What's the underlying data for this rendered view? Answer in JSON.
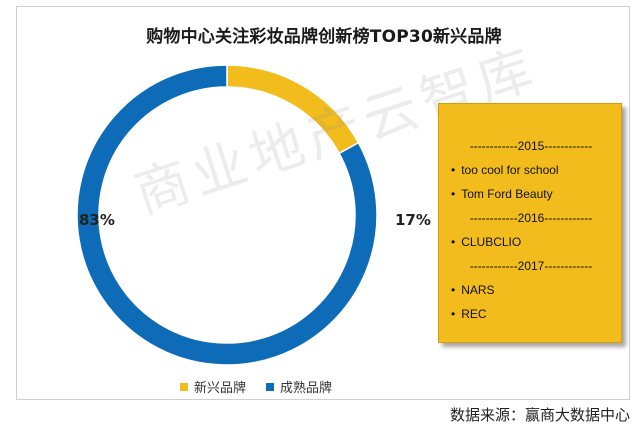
{
  "chart_data": {
    "type": "pie",
    "title": "购物中心关注彩妆品牌创新榜TOP30新兴品牌",
    "categories": [
      "新兴品牌",
      "成熟品牌"
    ],
    "values": [
      17,
      83
    ],
    "value_labels": [
      "17%",
      "83%"
    ],
    "colors": [
      "#f2bc1c",
      "#0e6bb8"
    ],
    "legend_position": "bottom"
  },
  "callout": {
    "lines": [
      {
        "kind": "divider",
        "text": "------------2015------------"
      },
      {
        "kind": "item",
        "text": "too cool for school"
      },
      {
        "kind": "item",
        "text": "Tom Ford Beauty"
      },
      {
        "kind": "divider",
        "text": "------------2016------------"
      },
      {
        "kind": "item",
        "text": "CLUBCLIO"
      },
      {
        "kind": "divider",
        "text": "------------2017------------"
      },
      {
        "kind": "item",
        "text": "NARS"
      },
      {
        "kind": "item",
        "text": "REC"
      }
    ],
    "bullet": "•"
  },
  "watermark": "商业地产云智库",
  "source": "数据来源：赢商大数据中心"
}
